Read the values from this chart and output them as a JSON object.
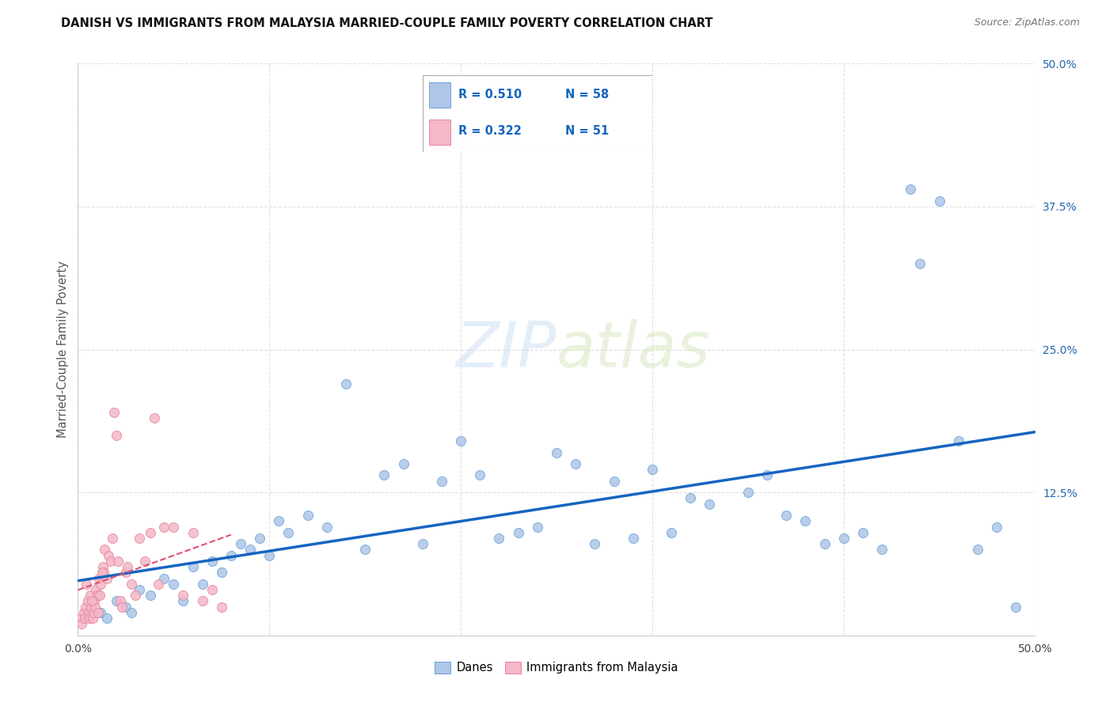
{
  "title": "DANISH VS IMMIGRANTS FROM MALAYSIA MARRIED-COUPLE FAMILY POVERTY CORRELATION CHART",
  "source": "Source: ZipAtlas.com",
  "ylabel": "Married-Couple Family Poverty",
  "xlim": [
    0,
    50
  ],
  "ylim": [
    0,
    50
  ],
  "danes_color": "#aec6e8",
  "danes_edge": "#6aa3d5",
  "malaysia_color": "#f4b8c8",
  "malaysia_edge": "#e8849a",
  "regression_blue": "#1565c0",
  "regression_pink": "#e05070",
  "watermark_zip": "ZIP",
  "watermark_atlas": "atlas",
  "background_color": "#ffffff",
  "grid_color": "#dddddd",
  "title_fontsize": 10.5,
  "r_n_color": "#1565c0",
  "danes_x": [
    1.2,
    1.5,
    2.0,
    2.5,
    3.2,
    3.8,
    4.5,
    5.0,
    5.5,
    6.0,
    7.0,
    7.5,
    8.0,
    8.5,
    9.0,
    9.5,
    10.0,
    10.5,
    11.0,
    12.0,
    13.0,
    14.0,
    15.0,
    16.0,
    17.0,
    18.0,
    19.0,
    20.0,
    21.0,
    22.0,
    23.0,
    24.0,
    25.0,
    26.0,
    27.0,
    28.0,
    29.0,
    30.0,
    31.0,
    32.0,
    33.0,
    35.0,
    36.0,
    37.0,
    38.0,
    39.0,
    40.0,
    41.0,
    42.0,
    43.5,
    44.0,
    45.0,
    46.0,
    47.0,
    48.0,
    49.0,
    2.8,
    6.5
  ],
  "danes_y": [
    2.0,
    1.5,
    3.0,
    2.5,
    4.0,
    3.5,
    5.0,
    4.5,
    3.0,
    6.0,
    6.5,
    5.5,
    7.0,
    8.0,
    7.5,
    8.5,
    7.0,
    10.0,
    9.0,
    10.5,
    9.5,
    22.0,
    7.5,
    14.0,
    15.0,
    8.0,
    13.5,
    17.0,
    14.0,
    8.5,
    9.0,
    9.5,
    16.0,
    15.0,
    8.0,
    13.5,
    8.5,
    14.5,
    9.0,
    12.0,
    11.5,
    12.5,
    14.0,
    10.5,
    10.0,
    8.0,
    8.5,
    9.0,
    7.5,
    39.0,
    32.5,
    38.0,
    17.0,
    7.5,
    9.5,
    2.5,
    2.0,
    4.5
  ],
  "malaysia_x": [
    0.15,
    0.2,
    0.3,
    0.35,
    0.4,
    0.5,
    0.55,
    0.6,
    0.65,
    0.7,
    0.75,
    0.8,
    0.85,
    0.9,
    0.95,
    1.0,
    1.05,
    1.1,
    1.15,
    1.2,
    1.3,
    1.35,
    1.4,
    1.5,
    1.6,
    1.7,
    1.8,
    1.9,
    2.0,
    2.1,
    2.2,
    2.3,
    2.5,
    2.8,
    3.0,
    3.2,
    3.5,
    3.8,
    4.0,
    4.2,
    4.5,
    5.0,
    5.5,
    6.0,
    6.5,
    7.0,
    7.5,
    1.25,
    0.45,
    2.6,
    0.72
  ],
  "malaysia_y": [
    1.5,
    1.0,
    2.0,
    1.5,
    2.5,
    3.0,
    2.0,
    1.5,
    3.5,
    2.5,
    1.5,
    2.0,
    3.0,
    2.5,
    4.0,
    3.5,
    2.0,
    5.0,
    3.5,
    4.5,
    6.0,
    5.5,
    7.5,
    5.0,
    7.0,
    6.5,
    8.5,
    19.5,
    17.5,
    6.5,
    3.0,
    2.5,
    5.5,
    4.5,
    3.5,
    8.5,
    6.5,
    9.0,
    19.0,
    4.5,
    9.5,
    9.5,
    3.5,
    9.0,
    3.0,
    4.0,
    2.5,
    5.5,
    4.5,
    6.0,
    3.0
  ]
}
